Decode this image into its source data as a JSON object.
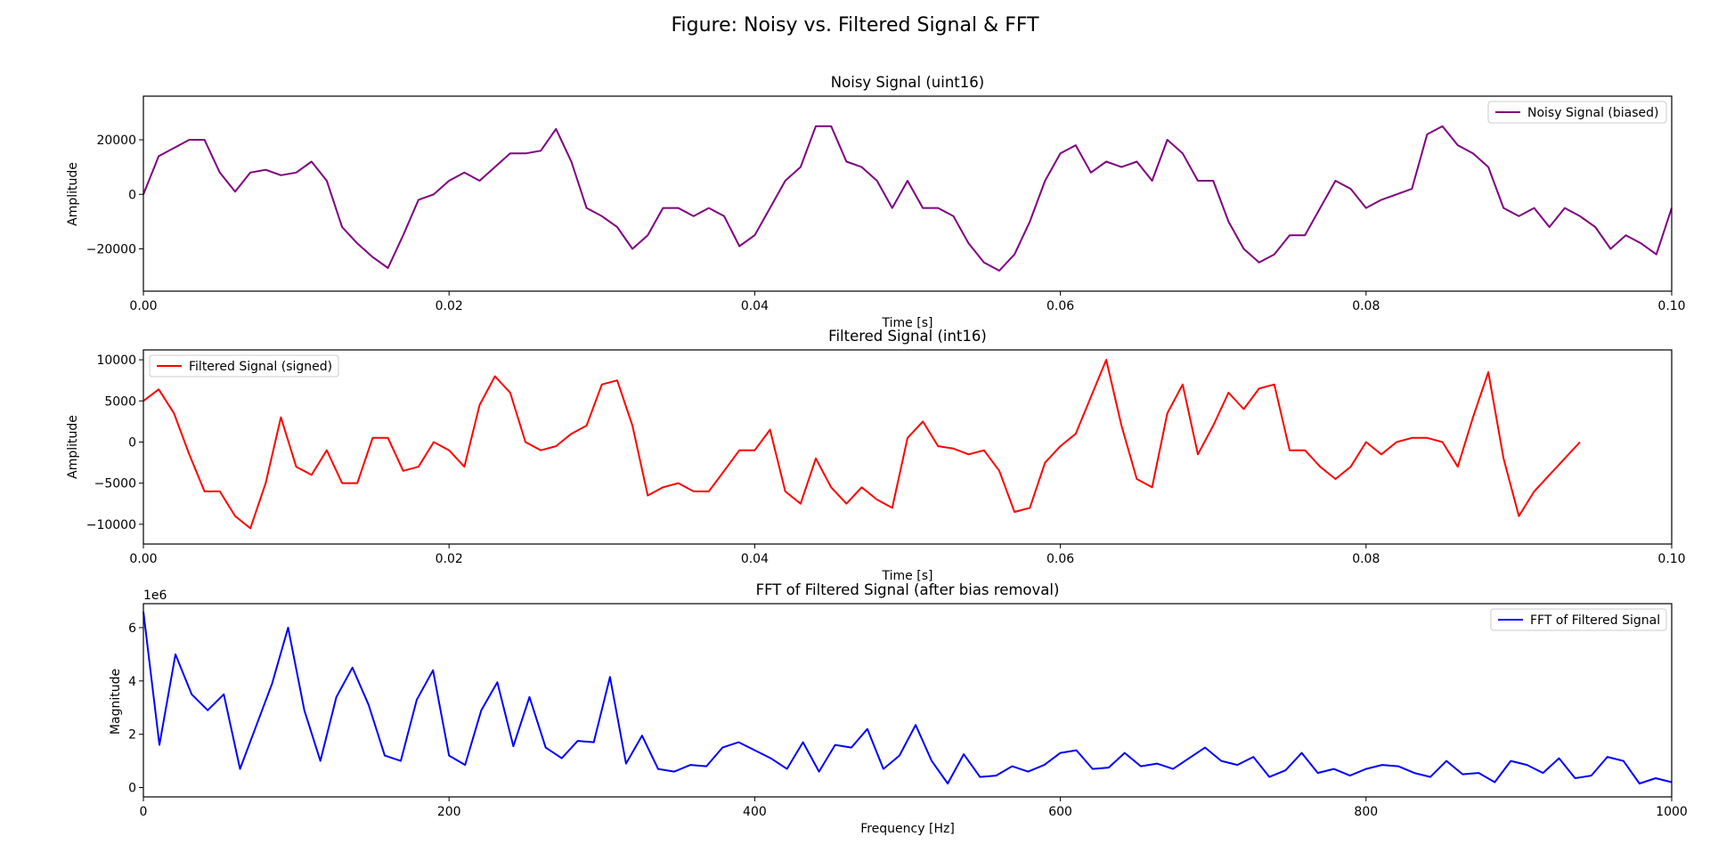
{
  "suptitle": "Figure: Noisy vs. Filtered Signal & FFT",
  "chart_data": [
    {
      "type": "line",
      "title": "Noisy Signal (uint16)",
      "xlabel": "Time [s]",
      "ylabel": "Amplitude",
      "xlim": [
        0,
        0.1
      ],
      "ylim": [
        -35500,
        36000
      ],
      "xticks": [
        "0.00",
        "0.02",
        "0.04",
        "0.06",
        "0.08",
        "0.10"
      ],
      "yticks": [
        "−20000",
        "0",
        "20000"
      ],
      "legend": {
        "position": "upper right"
      },
      "series": [
        {
          "name": "Noisy Signal (biased)",
          "color": "#800080",
          "x": [
            0,
            0.001,
            0.002,
            0.003,
            0.004,
            0.005,
            0.006,
            0.007,
            0.008,
            0.009,
            0.01,
            0.011,
            0.012,
            0.013,
            0.014,
            0.015,
            0.016,
            0.017,
            0.018,
            0.019,
            0.02,
            0.021,
            0.022,
            0.023,
            0.024,
            0.025,
            0.026,
            0.027,
            0.028,
            0.029,
            0.03,
            0.031,
            0.032,
            0.033,
            0.034,
            0.035,
            0.036,
            0.037,
            0.038,
            0.039,
            0.04,
            0.041,
            0.042,
            0.043,
            0.044,
            0.045,
            0.046,
            0.047,
            0.048,
            0.049,
            0.05,
            0.051,
            0.052,
            0.053,
            0.054,
            0.055,
            0.056,
            0.057,
            0.058,
            0.059,
            0.06,
            0.061,
            0.062,
            0.063,
            0.064,
            0.065,
            0.066,
            0.067,
            0.068,
            0.069,
            0.07,
            0.071,
            0.072,
            0.073,
            0.074,
            0.075,
            0.076,
            0.077,
            0.078,
            0.079,
            0.08,
            0.081,
            0.082,
            0.083,
            0.084,
            0.085,
            0.086,
            0.087,
            0.088,
            0.089,
            0.09,
            0.091,
            0.092,
            0.093,
            0.094,
            0.095,
            0.096,
            0.097,
            0.098,
            0.099,
            0.1
          ],
          "values": [
            0,
            14000,
            17000,
            20000,
            20000,
            8000,
            1000,
            8000,
            9000,
            7000,
            8000,
            12000,
            5000,
            -12000,
            -18000,
            -23000,
            -27000,
            -15000,
            -2000,
            0,
            5000,
            8000,
            5000,
            10000,
            15000,
            15000,
            16000,
            24000,
            12000,
            -5000,
            -8000,
            -12000,
            -20000,
            -15000,
            -5000,
            -5000,
            -8000,
            -5000,
            -8000,
            -19000,
            -15000,
            -5000,
            5000,
            10000,
            25000,
            25000,
            12000,
            10000,
            5000,
            -5000,
            5000,
            -5000,
            -5000,
            -8000,
            -18000,
            -25000,
            -28000,
            -22000,
            -10000,
            5000,
            15000,
            18000,
            8000,
            12000,
            10000,
            12000,
            5000,
            20000,
            15000,
            5000,
            5000,
            -10000,
            -20000,
            -25000,
            -22000,
            -15000,
            -15000,
            -5000,
            5000,
            2000,
            -5000,
            -2000,
            0,
            2000,
            22000,
            25000,
            18000,
            15000,
            10000,
            -5000,
            -8000,
            -5000,
            -12000,
            -5000,
            -8000,
            -12000,
            -20000,
            -15000,
            -18000,
            -22000,
            -5000
          ]
        }
      ]
    },
    {
      "type": "line",
      "title": "Filtered Signal (int16)",
      "xlabel": "Time [s]",
      "ylabel": "Amplitude",
      "xlim": [
        0,
        0.1
      ],
      "ylim": [
        -12400,
        11200
      ],
      "xticks": [
        "0.00",
        "0.02",
        "0.04",
        "0.06",
        "0.08",
        "0.10"
      ],
      "yticks": [
        "−10000",
        "−5000",
        "0",
        "5000",
        "10000"
      ],
      "legend": {
        "position": "upper left"
      },
      "series": [
        {
          "name": "Filtered Signal (signed)",
          "color": "#ff0000",
          "x": [
            0,
            0.001,
            0.002,
            0.003,
            0.004,
            0.005,
            0.006,
            0.007,
            0.008,
            0.009,
            0.01,
            0.011,
            0.012,
            0.013,
            0.014,
            0.015,
            0.016,
            0.017,
            0.018,
            0.019,
            0.02,
            0.021,
            0.022,
            0.023,
            0.024,
            0.025,
            0.026,
            0.027,
            0.028,
            0.029,
            0.03,
            0.031,
            0.032,
            0.033,
            0.034,
            0.035,
            0.036,
            0.037,
            0.038,
            0.039,
            0.04,
            0.041,
            0.042,
            0.043,
            0.044,
            0.045,
            0.046,
            0.047,
            0.048,
            0.049,
            0.05,
            0.051,
            0.052,
            0.053,
            0.054,
            0.055,
            0.056,
            0.057,
            0.058,
            0.059,
            0.06,
            0.061,
            0.062,
            0.063,
            0.064,
            0.065,
            0.066,
            0.067,
            0.068,
            0.069,
            0.07,
            0.071,
            0.072,
            0.073,
            0.074,
            0.075,
            0.076,
            0.077,
            0.078,
            0.079,
            0.08,
            0.081,
            0.082,
            0.083,
            0.084,
            0.085,
            0.086,
            0.087,
            0.088,
            0.089,
            0.09,
            0.091,
            0.092,
            0.093,
            0.094
          ],
          "values": [
            5000,
            6400,
            3500,
            -1500,
            -6000,
            -6000,
            -9000,
            -10500,
            -5000,
            3000,
            -3000,
            -4000,
            -1000,
            -5000,
            -5000,
            500,
            500,
            -3500,
            -3000,
            0,
            -1000,
            -3000,
            4500,
            8000,
            6000,
            0,
            -1000,
            -500,
            1000,
            2000,
            7000,
            7500,
            2000,
            -6500,
            -5500,
            -5000,
            -6000,
            -6000,
            -3500,
            -1000,
            -1000,
            1500,
            -6000,
            -7500,
            -2000,
            -5500,
            -7500,
            -5500,
            -7000,
            -8000,
            500,
            2500,
            -500,
            -800,
            -1500,
            -1000,
            -3500,
            -8500,
            -8000,
            -2500,
            -500,
            1000,
            5500,
            10000,
            2000,
            -4500,
            -5500,
            3500,
            7000,
            -1500,
            2000,
            6000,
            4000,
            6500,
            7000,
            -1000,
            -1000,
            -3000,
            -4500,
            -3000,
            0,
            -1500,
            0,
            500,
            500,
            0,
            -3000,
            3000,
            8500,
            -2000,
            -9000,
            -6000,
            -4000,
            -2000,
            0
          ]
        }
      ]
    },
    {
      "type": "line",
      "title": "FFT of Filtered Signal (after bias removal)",
      "xlabel": "Frequency [Hz]",
      "ylabel": "Magnitude",
      "offset_text": "1e6",
      "xlim": [
        0,
        1000
      ],
      "ylim": [
        -0.35,
        6.9
      ],
      "xticks": [
        "0",
        "200",
        "400",
        "600",
        "800",
        "1000"
      ],
      "yticks": [
        "0",
        "2",
        "4",
        "6"
      ],
      "legend": {
        "position": "upper right"
      },
      "series": [
        {
          "name": "FFT of Filtered Signal",
          "color": "#0000ff",
          "x": [
            0,
            10.5,
            21,
            31.6,
            42.1,
            52.6,
            63.2,
            73.7,
            84.2,
            94.7,
            105.3,
            115.8,
            126.3,
            136.8,
            147.4,
            157.9,
            168.4,
            178.9,
            189.5,
            200,
            210.5,
            221.1,
            231.6,
            242.1,
            252.6,
            263.2,
            273.7,
            284.2,
            294.7,
            305.3,
            315.8,
            326.3,
            336.8,
            347.4,
            357.9,
            368.4,
            378.9,
            389.5,
            400,
            410.5,
            421.1,
            431.6,
            442.1,
            452.6,
            463.2,
            473.7,
            484.2,
            494.7,
            505.3,
            515.8,
            526.3,
            536.8,
            547.4,
            557.9,
            568.4,
            578.9,
            589.5,
            600,
            610.5,
            621.1,
            631.6,
            642.1,
            652.6,
            663.2,
            673.7,
            684.2,
            694.7,
            705.3,
            715.8,
            726.3,
            736.8,
            747.4,
            757.9,
            768.4,
            778.9,
            789.5,
            800,
            810.5,
            821.1,
            831.6,
            842.1,
            852.6,
            863.2,
            873.7,
            884.2,
            894.7,
            905.3,
            915.8,
            926.3,
            936.8,
            947.4,
            957.9,
            968.4,
            978.9,
            989.5,
            1000
          ],
          "values": [
            6.6,
            1.6,
            5.0,
            3.5,
            2.9,
            3.5,
            0.7,
            2.3,
            3.9,
            6.0,
            2.9,
            1.0,
            3.4,
            4.5,
            3.1,
            1.2,
            1.0,
            3.3,
            4.4,
            1.2,
            0.85,
            2.9,
            3.95,
            1.55,
            3.4,
            1.5,
            1.1,
            1.75,
            1.7,
            4.15,
            0.9,
            1.95,
            0.7,
            0.6,
            0.85,
            0.8,
            1.5,
            1.7,
            1.4,
            1.1,
            0.7,
            1.7,
            0.6,
            1.6,
            1.5,
            2.2,
            0.7,
            1.2,
            2.35,
            1.0,
            0.15,
            1.25,
            0.4,
            0.45,
            0.8,
            0.6,
            0.85,
            1.3,
            1.4,
            0.7,
            0.75,
            1.3,
            0.8,
            0.9,
            0.7,
            1.1,
            1.5,
            1.0,
            0.85,
            1.15,
            0.4,
            0.65,
            1.3,
            0.55,
            0.7,
            0.45,
            0.7,
            0.85,
            0.8,
            0.55,
            0.4,
            1.0,
            0.5,
            0.55,
            0.2,
            1.0,
            0.85,
            0.55,
            1.1,
            0.35,
            0.45,
            1.15,
            1.0,
            0.15,
            0.35,
            0.2
          ]
        }
      ]
    }
  ]
}
